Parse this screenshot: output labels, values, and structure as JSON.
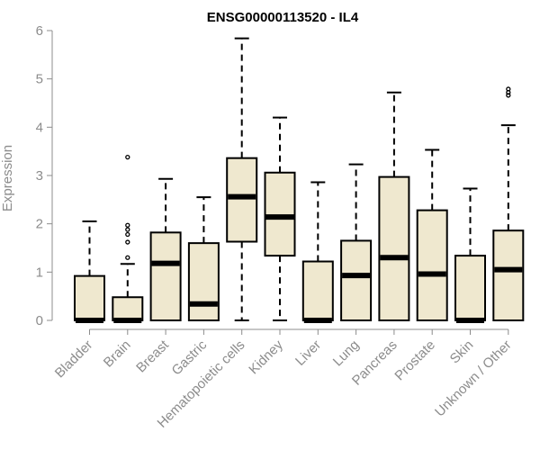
{
  "chart_data": {
    "type": "boxplot",
    "title": "ENSG00000113520 - IL4",
    "ylabel": "Expression",
    "xlabel": "",
    "ylim": [
      0,
      6
    ],
    "yticks": [
      0,
      1,
      2,
      3,
      4,
      5,
      6
    ],
    "grid": false,
    "box_color": "#efe8cf",
    "categories": [
      "Bladder",
      "Brain",
      "Breast",
      "Gastric",
      "Hematopoietic cells",
      "Kidney",
      "Liver",
      "Lung",
      "Pancreas",
      "Prostate",
      "Skin",
      "Unknown / Other"
    ],
    "boxes": [
      {
        "min": 0,
        "q1": 0,
        "median": 0,
        "q3": 0.92,
        "max": 2.05,
        "outliers": []
      },
      {
        "min": 0,
        "q1": 0,
        "median": 0,
        "q3": 0.48,
        "max": 1.17,
        "outliers": [
          1.3,
          1.62,
          1.78,
          1.88,
          1.97,
          3.38
        ]
      },
      {
        "min": 0,
        "q1": 0,
        "median": 1.18,
        "q3": 1.82,
        "max": 2.93,
        "outliers": []
      },
      {
        "min": 0,
        "q1": 0,
        "median": 0.34,
        "q3": 1.6,
        "max": 2.55,
        "outliers": []
      },
      {
        "min": 0,
        "q1": 1.63,
        "median": 2.56,
        "q3": 3.36,
        "max": 5.84,
        "outliers": []
      },
      {
        "min": 0,
        "q1": 1.34,
        "median": 2.14,
        "q3": 3.06,
        "max": 4.2,
        "outliers": []
      },
      {
        "min": 0,
        "q1": 0,
        "median": 0,
        "q3": 1.22,
        "max": 2.86,
        "outliers": []
      },
      {
        "min": 0,
        "q1": 0,
        "median": 0.93,
        "q3": 1.65,
        "max": 3.23,
        "outliers": []
      },
      {
        "min": 0,
        "q1": 0,
        "median": 1.3,
        "q3": 2.97,
        "max": 4.72,
        "outliers": []
      },
      {
        "min": 0,
        "q1": 0,
        "median": 0.96,
        "q3": 2.28,
        "max": 3.53,
        "outliers": []
      },
      {
        "min": 0,
        "q1": 0,
        "median": 0,
        "q3": 1.34,
        "max": 2.73,
        "outliers": []
      },
      {
        "min": 0,
        "q1": 0,
        "median": 1.05,
        "q3": 1.86,
        "max": 4.04,
        "outliers": [
          4.66,
          4.72,
          4.79
        ]
      }
    ]
  }
}
